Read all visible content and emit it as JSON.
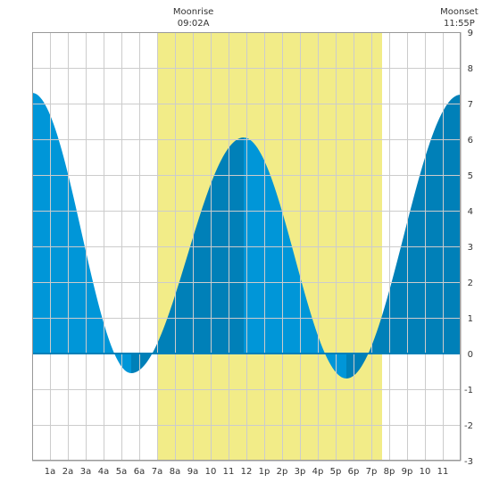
{
  "chart_data": {
    "type": "area",
    "title": "",
    "xlabel": "",
    "ylabel": "",
    "x_unit": "hour",
    "xlim": [
      0,
      24
    ],
    "ylim": [
      -3,
      9
    ],
    "y_ticks": [
      -3,
      -2,
      -1,
      0,
      1,
      2,
      3,
      4,
      5,
      6,
      7,
      8,
      9
    ],
    "x_tick_labels": [
      {
        "hour": 1,
        "label": "1a"
      },
      {
        "hour": 2,
        "label": "2a"
      },
      {
        "hour": 3,
        "label": "3a"
      },
      {
        "hour": 4,
        "label": "4a"
      },
      {
        "hour": 5,
        "label": "5a"
      },
      {
        "hour": 6,
        "label": "6a"
      },
      {
        "hour": 7,
        "label": "7a"
      },
      {
        "hour": 8,
        "label": "8a"
      },
      {
        "hour": 9,
        "label": "9a"
      },
      {
        "hour": 10,
        "label": "10"
      },
      {
        "hour": 11,
        "label": "11"
      },
      {
        "hour": 12,
        "label": "12"
      },
      {
        "hour": 13,
        "label": "1p"
      },
      {
        "hour": 14,
        "label": "2p"
      },
      {
        "hour": 15,
        "label": "3p"
      },
      {
        "hour": 16,
        "label": "4p"
      },
      {
        "hour": 17,
        "label": "5p"
      },
      {
        "hour": 18,
        "label": "6p"
      },
      {
        "hour": 19,
        "label": "7p"
      },
      {
        "hour": 20,
        "label": "8p"
      },
      {
        "hour": 21,
        "label": "9p"
      },
      {
        "hour": 22,
        "label": "10"
      },
      {
        "hour": 23,
        "label": "11"
      }
    ],
    "grid": true,
    "tide_extremes": [
      {
        "hour": 0.0,
        "height": 7.3
      },
      {
        "hour": 5.55,
        "height": -0.55
      },
      {
        "hour": 11.85,
        "height": 6.05
      },
      {
        "hour": 17.6,
        "height": -0.7
      },
      {
        "hour": 24.0,
        "height": 7.25
      }
    ],
    "daylight": {
      "start_hour": 7.0,
      "end_hour": 19.6
    },
    "moon_events": [
      {
        "label": "Moonrise",
        "time": "09:02A",
        "hour": 9.03
      },
      {
        "label": "Moonset",
        "time": "11:55P",
        "hour": 23.92
      }
    ],
    "colors": {
      "rising": "#0080b8",
      "falling": "#0096d8",
      "daylight": "#f2ec88",
      "grid": "#cccccc",
      "zero_line": "#0080b8",
      "background": "#ffffff"
    }
  }
}
